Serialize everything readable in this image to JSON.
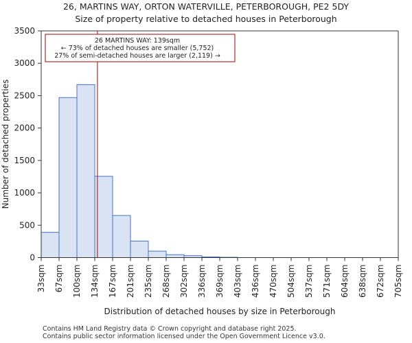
{
  "title_line1": "26, MARTINS WAY, ORTON WATERVILLE, PETERBOROUGH, PE2 5DY",
  "title_line2": "Size of property relative to detached houses in Peterborough",
  "chart_data": {
    "type": "bar",
    "title": "Size of property relative to detached houses in Peterborough",
    "xlabel": "Distribution of detached houses by size in Peterborough",
    "ylabel": "Number of detached properties",
    "ylim": [
      0,
      3500
    ],
    "yticks": [
      0,
      500,
      1000,
      1500,
      2000,
      2500,
      3000,
      3500
    ],
    "bin_edges": [
      "33sqm",
      "67sqm",
      "100sqm",
      "134sqm",
      "167sqm",
      "201sqm",
      "235sqm",
      "268sqm",
      "302sqm",
      "336sqm",
      "369sqm",
      "403sqm",
      "436sqm",
      "470sqm",
      "504sqm",
      "537sqm",
      "571sqm",
      "604sqm",
      "638sqm",
      "672sqm",
      "705sqm"
    ],
    "values": [
      390,
      2470,
      2670,
      1255,
      650,
      255,
      100,
      45,
      30,
      10,
      5,
      0,
      0,
      0,
      0,
      0,
      0,
      0,
      0,
      0
    ],
    "marker": {
      "value_sqm": 139,
      "bin_position": 3.15,
      "color": "#aa0000"
    },
    "annotation": {
      "line1": "26 MARTINS WAY: 139sqm",
      "line2": "← 73% of detached houses are smaller (5,752)",
      "line3": "27% of semi-detached houses are larger (2,119) →"
    },
    "bar_fill": "#dae3f3",
    "bar_edge": "#4472c4"
  },
  "footer_line1": "Contains HM Land Registry data © Crown copyright and database right 2025.",
  "footer_line2": "Contains public sector information licensed under the Open Government Licence v3.0."
}
